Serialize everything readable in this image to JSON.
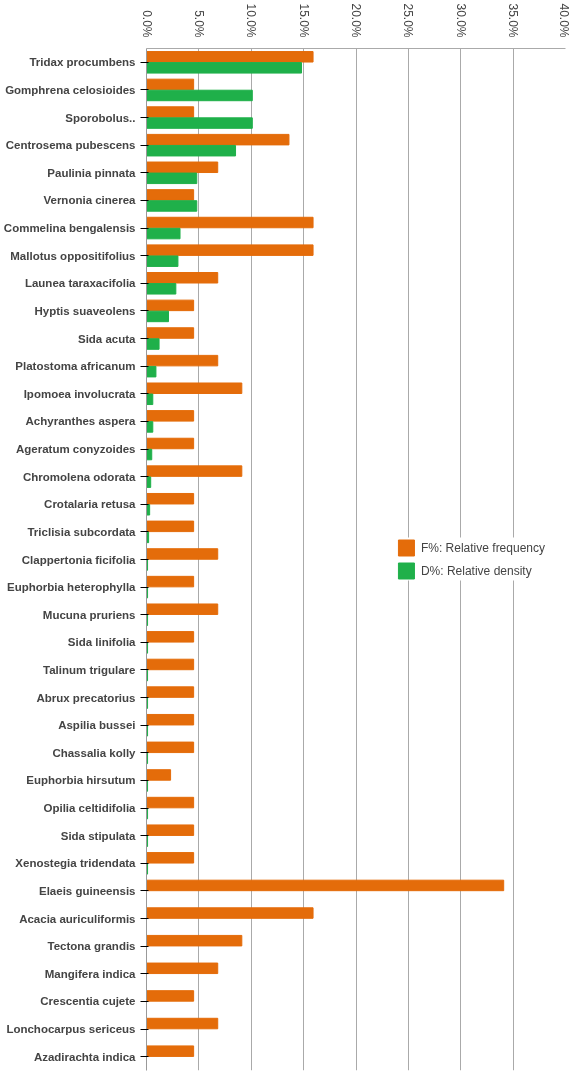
{
  "chart_data": {
    "type": "bar",
    "orientation": "horizontal",
    "categories": [
      "Tridax procumbens",
      "Gomphrena celosioides",
      "Sporobolus..",
      "Centrosema pubescens",
      "Paulinia pinnata",
      "Vernonia cinerea",
      "Commelina bengalensis",
      "Mallotus oppositifolius",
      "Launea taraxacifolia",
      "Hyptis suaveolens",
      "Sida acuta",
      "Platostoma africanum",
      "Ipomoea involucrata",
      "Achyranthes aspera",
      "Ageratum conyzoides",
      "Chromolena odorata",
      "Crotalaria retusa",
      "Triclisia subcordata",
      "Clappertonia ficifolia",
      "Euphorbia heterophylla",
      "Mucuna pruriens",
      "Sida linifolia",
      "Talinum trigulare",
      "Abrux precatorius",
      "Aspilia bussei",
      "Chassalia kolly",
      "Euphorbia hirsutum",
      "Opilia celtidifolia",
      "Sida stipulata",
      "Xenostegia tridendata",
      "Elaeis guineensis",
      "Acacia auriculiformis",
      "Tectona grandis",
      "Mangifera indica",
      "Crescentia cujete",
      "Lonchocarpus sericeus",
      "Azadirachta indica"
    ],
    "series": [
      {
        "name": "F%: Relative frequency",
        "color": "#e46c0a",
        "values": [
          15.9,
          4.5,
          4.5,
          13.6,
          6.8,
          4.5,
          15.9,
          15.9,
          6.8,
          4.5,
          4.5,
          6.8,
          9.1,
          4.5,
          4.5,
          9.1,
          4.5,
          4.5,
          6.8,
          4.5,
          6.8,
          4.5,
          4.5,
          4.5,
          4.5,
          4.5,
          2.3,
          4.5,
          4.5,
          4.5,
          34.1,
          15.9,
          9.1,
          6.8,
          4.5,
          6.8,
          4.5
        ]
      },
      {
        "name": "D%: Relative density",
        "color": "#1fb04a",
        "values": [
          14.8,
          10.1,
          10.1,
          8.5,
          4.8,
          4.8,
          3.2,
          3.0,
          2.8,
          2.1,
          1.2,
          0.9,
          0.6,
          0.6,
          0.5,
          0.4,
          0.3,
          0.2,
          0.1,
          0.1,
          0.1,
          0.1,
          0.1,
          0.1,
          0.1,
          0.1,
          0.1,
          0.1,
          0.1,
          0.1,
          null,
          null,
          null,
          null,
          null,
          null,
          null
        ]
      }
    ],
    "xlim": [
      0,
      40
    ],
    "xticks": [
      {
        "value": 0,
        "label": "0.0%"
      },
      {
        "value": 5,
        "label": "5.0%"
      },
      {
        "value": 10,
        "label": "10.0%"
      },
      {
        "value": 15,
        "label": "15.0%"
      },
      {
        "value": 20,
        "label": "20.0%"
      },
      {
        "value": 25,
        "label": "25.0%"
      },
      {
        "value": 30,
        "label": "30.0%"
      },
      {
        "value": 35,
        "label": "35.0%"
      },
      {
        "value": 40,
        "label": "40.0%"
      }
    ],
    "grid": "x",
    "legend": "right"
  }
}
